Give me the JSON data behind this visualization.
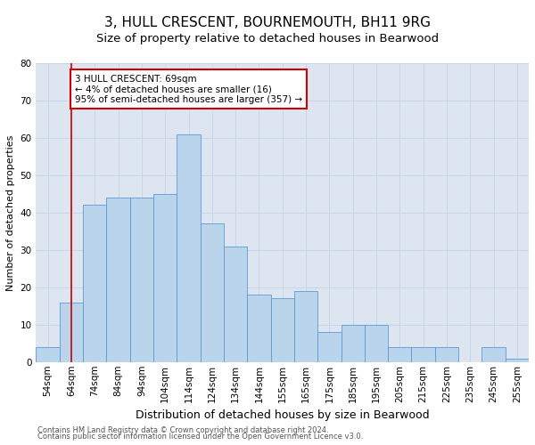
{
  "title": "3, HULL CRESCENT, BOURNEMOUTH, BH11 9RG",
  "subtitle": "Size of property relative to detached houses in Bearwood",
  "xlabel": "Distribution of detached houses by size in Bearwood",
  "ylabel": "Number of detached properties",
  "footer_line1": "Contains HM Land Registry data © Crown copyright and database right 2024.",
  "footer_line2": "Contains public sector information licensed under the Open Government Licence v3.0.",
  "bin_labels": [
    "54sqm",
    "64sqm",
    "74sqm",
    "84sqm",
    "94sqm",
    "104sqm",
    "114sqm",
    "124sqm",
    "134sqm",
    "144sqm",
    "155sqm",
    "165sqm",
    "175sqm",
    "185sqm",
    "195sqm",
    "205sqm",
    "215sqm",
    "225sqm",
    "235sqm",
    "245sqm",
    "255sqm"
  ],
  "bar_heights": [
    4,
    16,
    42,
    44,
    44,
    45,
    61,
    37,
    31,
    18,
    17,
    19,
    8,
    10,
    10,
    4,
    4,
    4,
    0,
    4,
    1
  ],
  "bar_color": "#bad4ec",
  "bar_edge_color": "#5b9bd5",
  "annotation_text": "3 HULL CRESCENT: 69sqm\n← 4% of detached houses are smaller (16)\n95% of semi-detached houses are larger (357) →",
  "annotation_box_color": "#ffffff",
  "annotation_box_edge_color": "#cc0000",
  "vline_color": "#cc0000",
  "vline_x": 1,
  "ylim": [
    0,
    80
  ],
  "yticks": [
    0,
    10,
    20,
    30,
    40,
    50,
    60,
    70,
    80
  ],
  "grid_color": "#c8d4e8",
  "background_color": "#dde5f0",
  "title_fontsize": 11,
  "subtitle_fontsize": 9.5,
  "xlabel_fontsize": 9,
  "ylabel_fontsize": 8,
  "tick_fontsize": 7.5,
  "annotation_fontsize": 7.5,
  "footer_fontsize": 6
}
